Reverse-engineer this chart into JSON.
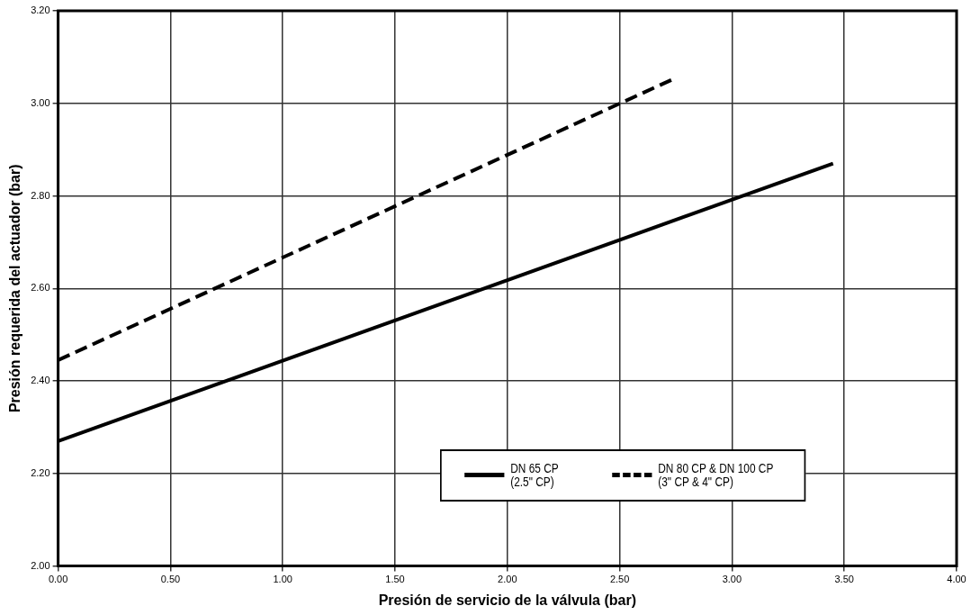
{
  "chart_data": {
    "type": "line",
    "xlabel": "Presión de servicio de la válvula (bar)",
    "ylabel": "Presión requerida del actuador (bar)",
    "series": [
      {
        "name": "DN 65 CP\n(2.5\" CP)",
        "color": "#000000",
        "line_style": "solid",
        "x": [
          0,
          3.45
        ],
        "values": [
          2.27,
          2.87
        ]
      },
      {
        "name": "DN 80 CP & DN 100 CP\n(3\" CP & 4\" CP)",
        "color": "#000000",
        "line_style": "dashed",
        "x": [
          0,
          2.75
        ],
        "values": [
          2.445,
          3.055
        ]
      }
    ],
    "xlim": [
      0,
      4
    ],
    "xticks": [
      {
        "value": 0,
        "label": "0.00"
      },
      {
        "value": 0.5,
        "label": "0.50"
      },
      {
        "value": 1,
        "label": "1.00"
      },
      {
        "value": 1.5,
        "label": "1.50"
      },
      {
        "value": 2,
        "label": "2.00"
      },
      {
        "value": 2.5,
        "label": "2.50"
      },
      {
        "value": 3,
        "label": "3.00"
      },
      {
        "value": 3.5,
        "label": "3.50"
      },
      {
        "value": 4,
        "label": "4.00"
      }
    ],
    "ylim": [
      2,
      3.2
    ],
    "yticks": [
      {
        "value": 2,
        "label": "2.00"
      },
      {
        "value": 2.2,
        "label": "2.20"
      },
      {
        "value": 2.4,
        "label": "2.40"
      },
      {
        "value": 2.6,
        "label": "2.60"
      },
      {
        "value": 2.8,
        "label": "2.80"
      },
      {
        "value": 3,
        "label": "3.00"
      },
      {
        "value": 3.2,
        "label": "3.20"
      }
    ],
    "grid": true,
    "legend": "bottom right",
    "marker": "none"
  }
}
